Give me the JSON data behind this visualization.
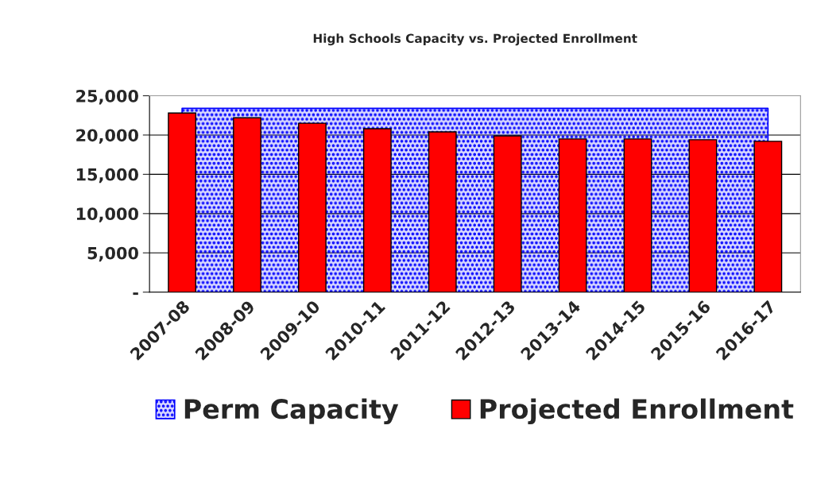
{
  "chart_data": {
    "type": "bar",
    "title": "High Schools Capacity vs. Projected Enrollment",
    "categories": [
      "2007-08",
      "2008-09",
      "2009-10",
      "2010-11",
      "2011-12",
      "2012-13",
      "2013-14",
      "2014-15",
      "2015-16",
      "2016-17"
    ],
    "series": [
      {
        "name": "Perm Capacity",
        "type": "area",
        "color": "#0000ff",
        "values": [
          23400,
          23400,
          23400,
          23400,
          23400,
          23400,
          23400,
          23400,
          23400,
          23400
        ]
      },
      {
        "name": "Projected Enrollment",
        "color": "#ff0000",
        "values": [
          22800,
          22200,
          21500,
          20800,
          20400,
          19900,
          19500,
          19500,
          19400,
          19200
        ]
      }
    ],
    "ylim": [
      0,
      25000
    ],
    "yticks": [
      {
        "value": 0,
        "label": "-"
      },
      {
        "value": 5000,
        "label": "5,000"
      },
      {
        "value": 10000,
        "label": "10,000"
      },
      {
        "value": 15000,
        "label": "15,000"
      },
      {
        "value": 20000,
        "label": "20,000"
      },
      {
        "value": 25000,
        "label": "25,000"
      }
    ],
    "grid": "y",
    "legend": "bottom"
  }
}
